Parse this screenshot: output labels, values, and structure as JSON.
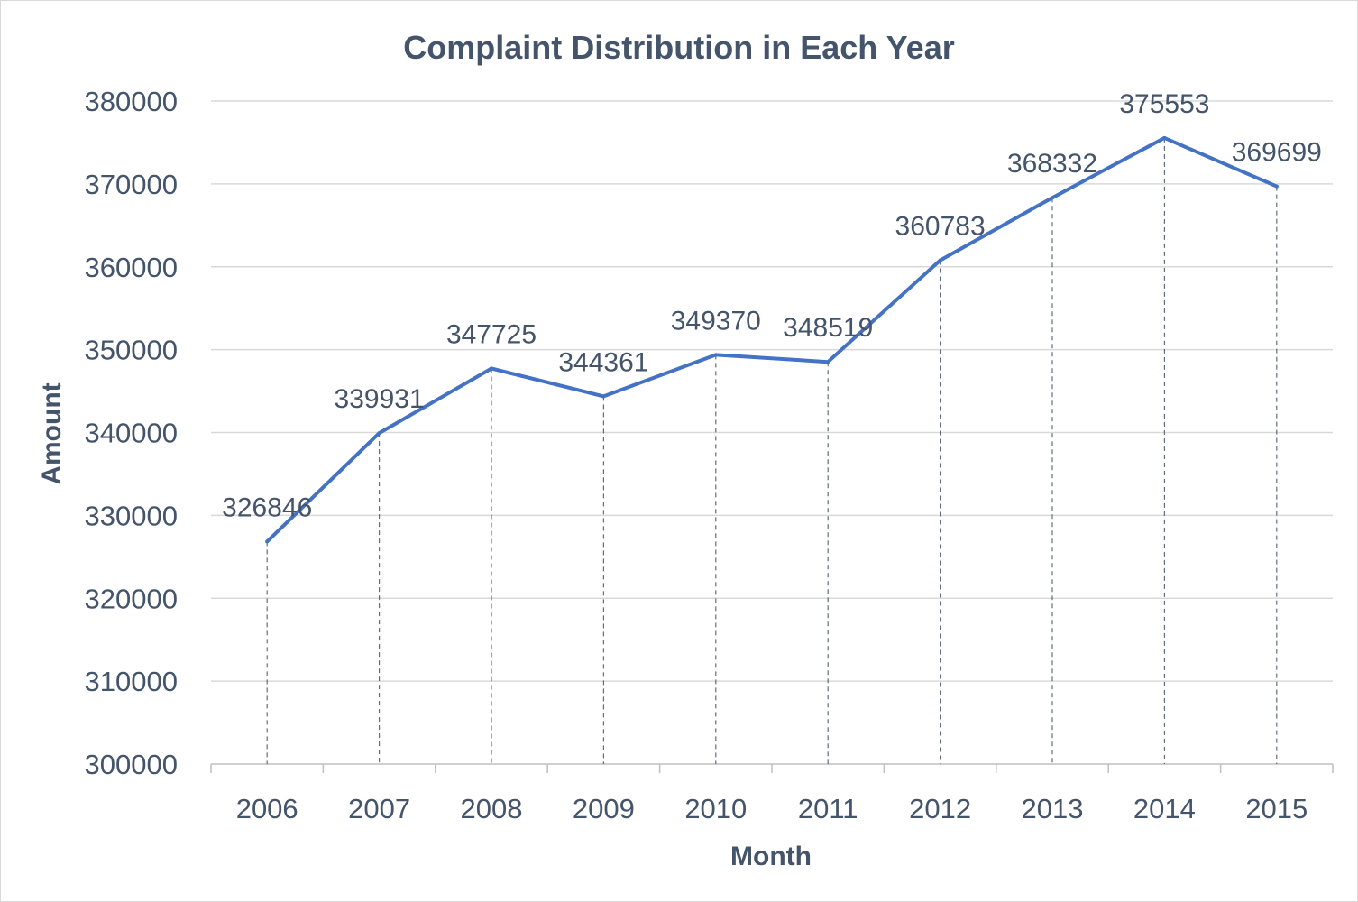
{
  "chart_data": {
    "type": "line",
    "title": "Complaint Distribution in Each Year",
    "xlabel": "Month",
    "ylabel": "Amount",
    "categories": [
      "2006",
      "2007",
      "2008",
      "2009",
      "2010",
      "2011",
      "2012",
      "2013",
      "2014",
      "2015"
    ],
    "series": [
      {
        "values": [
          326846,
          339931,
          347725,
          344361,
          349370,
          348519,
          360783,
          368332,
          375553,
          369699
        ]
      }
    ],
    "ylim": [
      300000,
      380000
    ],
    "yticks": [
      300000,
      310000,
      320000,
      330000,
      340000,
      350000,
      360000,
      370000,
      380000
    ],
    "grid": true,
    "drop_lines": true,
    "data_labels": true,
    "legend": "none",
    "colors": {
      "series": "#4472c4",
      "text": "#44546a",
      "grid": "#d9d9d9"
    }
  }
}
